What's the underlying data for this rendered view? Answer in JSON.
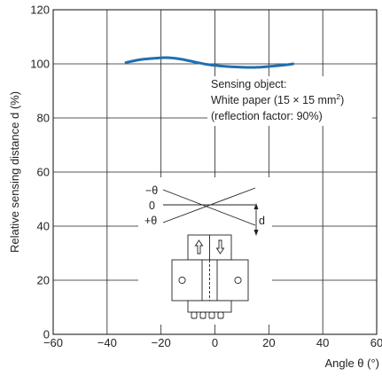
{
  "chart_data": {
    "type": "line",
    "xlabel": "Angle θ (°)",
    "ylabel": "Relative sensing distance d (%)",
    "xlim": [
      -60,
      60
    ],
    "ylim": [
      0,
      120
    ],
    "x_ticks": [
      "−60",
      "−40",
      "−20",
      "0",
      "20",
      "40",
      "60"
    ],
    "y_ticks": [
      "0",
      "20",
      "40",
      "60",
      "80",
      "100",
      "120"
    ],
    "grid": true,
    "series": [
      {
        "color": "#1f6fb2",
        "x": [
          -33,
          -28,
          -23,
          -18,
          -13,
          -8,
          -3,
          2,
          7,
          12,
          17,
          22,
          27,
          29
        ],
        "y": [
          100.5,
          101.5,
          102.0,
          102.3,
          101.8,
          100.8,
          99.8,
          99.2,
          98.9,
          98.7,
          98.8,
          99.2,
          99.7,
          100.0
        ]
      }
    ],
    "annotation_lines": [
      "Sensing object:",
      "White paper (15 × 15 mm",
      "(reflection factor: 90%)"
    ],
    "annotation_superscript": "2",
    "annotation_close": ")"
  },
  "diagram": {
    "minus_theta": "−θ",
    "zero": "0",
    "plus_theta": "+θ",
    "distance": "d"
  }
}
